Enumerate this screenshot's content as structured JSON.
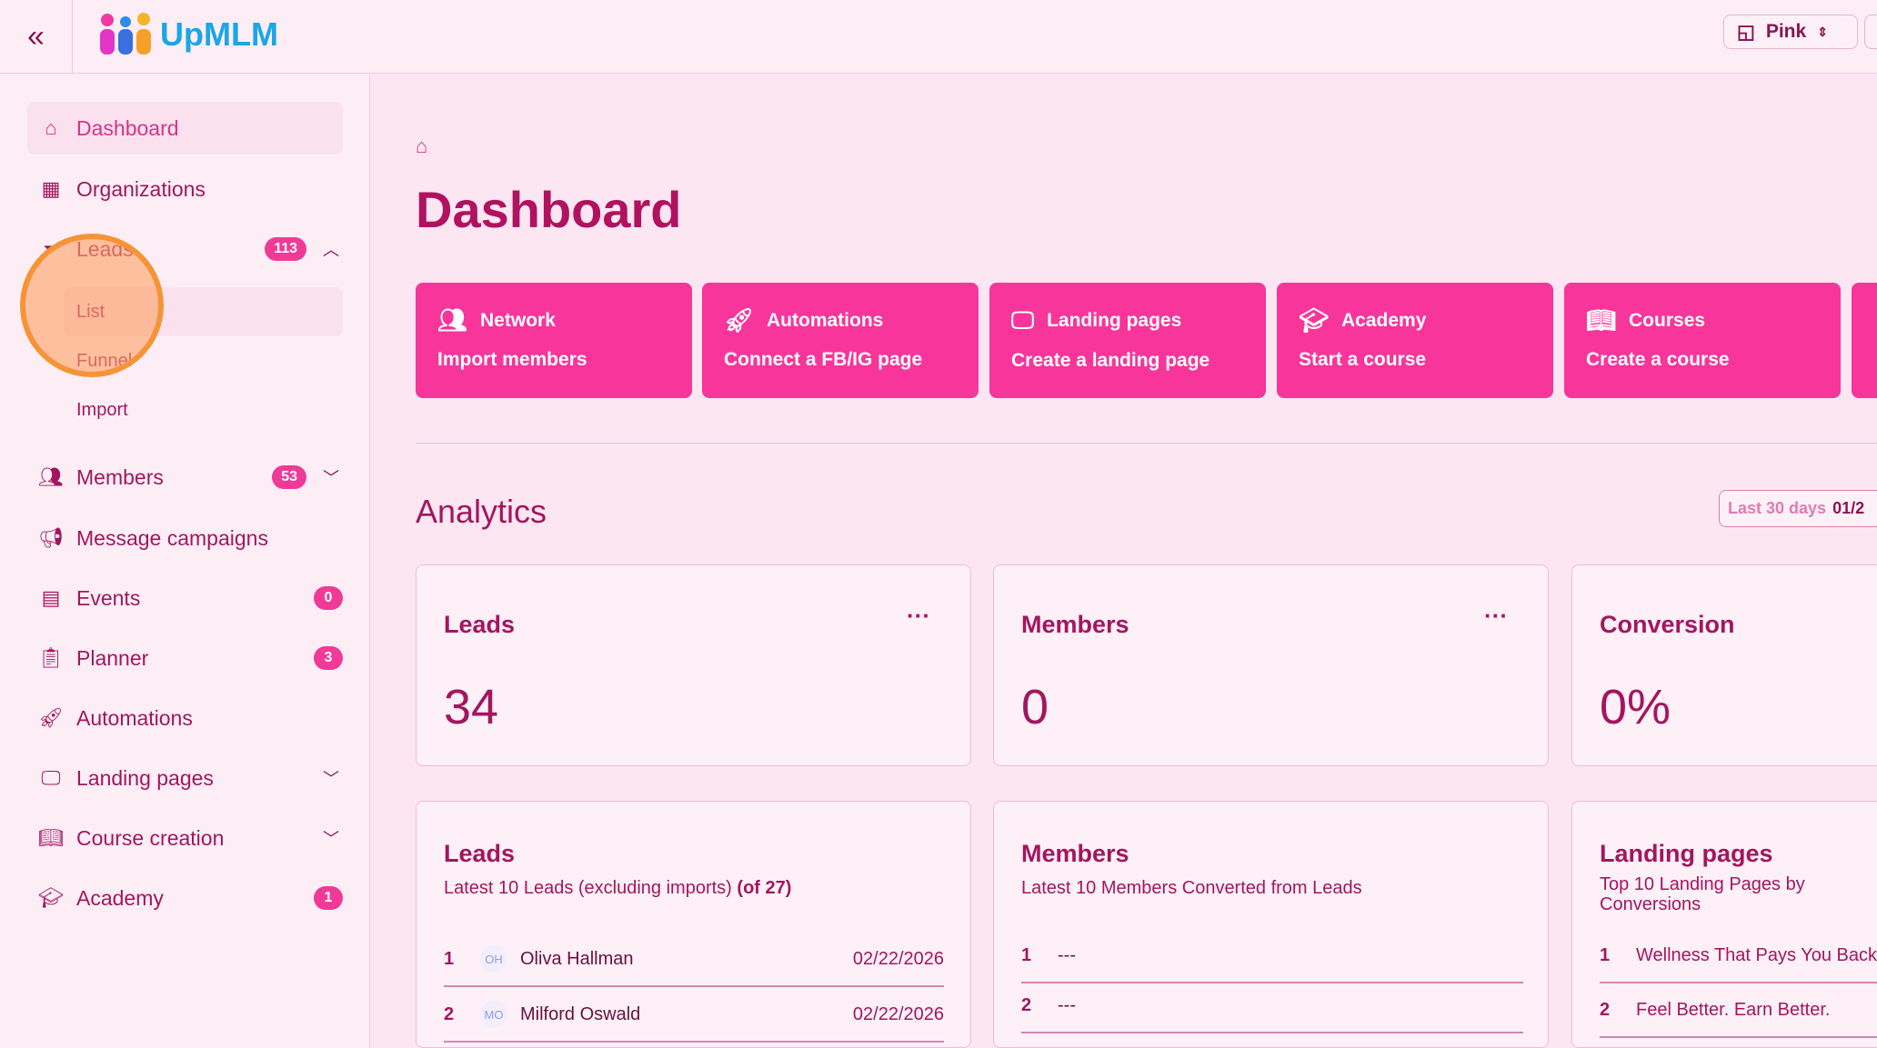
{
  "header": {
    "collapse_icon": "double-chevron-left-icon",
    "logo_text": "UpMLM",
    "theme_label": "Pink"
  },
  "sidebar": {
    "items": [
      {
        "label": "Dashboard",
        "icon": "home-icon"
      },
      {
        "label": "Organizations",
        "icon": "building-icon"
      },
      {
        "label": "Leads",
        "icon": "funnel-icon",
        "badge": "113",
        "sub": [
          "List",
          "Funnel",
          "Import"
        ]
      },
      {
        "label": "Members",
        "icon": "users-icon",
        "badge": "53"
      },
      {
        "label": "Message campaigns",
        "icon": "megaphone-icon"
      },
      {
        "label": "Events",
        "icon": "calendar-icon",
        "badge": "0"
      },
      {
        "label": "Planner",
        "icon": "clipboard-icon",
        "badge": "3"
      },
      {
        "label": "Automations",
        "icon": "rocket-icon"
      },
      {
        "label": "Landing pages",
        "icon": "monitor-icon"
      },
      {
        "label": "Course creation",
        "icon": "book-icon"
      },
      {
        "label": "Academy",
        "icon": "graduation-cap-icon",
        "badge": "1"
      }
    ]
  },
  "page": {
    "title": "Dashboard"
  },
  "actions": [
    {
      "title": "Network",
      "sub": "Import members"
    },
    {
      "title": "Automations",
      "sub": "Connect a FB/IG page"
    },
    {
      "title": "Landing pages",
      "sub": "Create a landing page"
    },
    {
      "title": "Academy",
      "sub": "Start a course"
    },
    {
      "title": "Courses",
      "sub": "Create a course"
    }
  ],
  "analytics": {
    "title": "Analytics",
    "range_label": "Last 30 days",
    "range_value": "01/2",
    "stats": [
      {
        "label": "Leads",
        "value": "34"
      },
      {
        "label": "Members",
        "value": "0"
      },
      {
        "label": "Conversion",
        "value": "0%"
      }
    ],
    "leads": {
      "title": "Leads",
      "subtitle": "Latest 10 Leads (excluding imports)",
      "count": "(of 27)",
      "rows": [
        {
          "n": "1",
          "initials": "OH",
          "name": "Oliva Hallman",
          "date": "02/22/2026"
        },
        {
          "n": "2",
          "initials": "MO",
          "name": "Milford Oswald",
          "date": "02/22/2026"
        }
      ]
    },
    "members": {
      "title": "Members",
      "subtitle": "Latest 10 Members Converted from Leads",
      "rows": [
        {
          "n": "1",
          "name": "---"
        },
        {
          "n": "2",
          "name": "---"
        }
      ]
    },
    "landing": {
      "title": "Landing pages",
      "subtitle": "Top 10 Landing Pages by Conversions",
      "rows": [
        {
          "n": "1",
          "name": "Wellness That Pays You Back"
        },
        {
          "n": "2",
          "name": "Feel Better. Earn Better."
        }
      ]
    }
  },
  "colors": {
    "accent": "#f7359a",
    "text": "#a3165f",
    "background": "#fce6f2"
  }
}
